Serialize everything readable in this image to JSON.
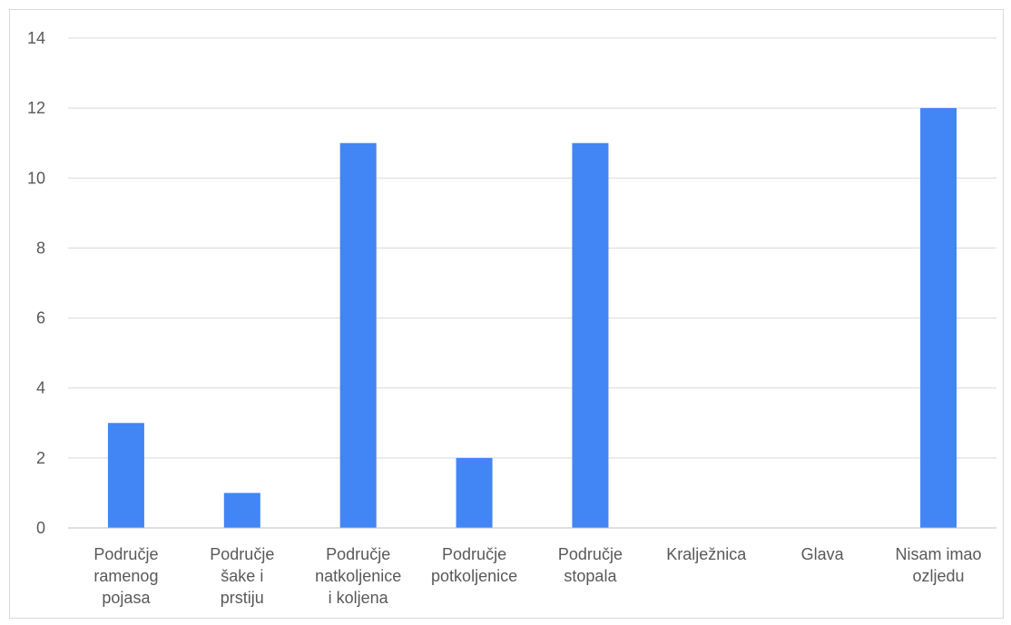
{
  "chart_data": {
    "type": "bar",
    "categories": [
      [
        "Područje",
        "ramenog",
        "pojasa"
      ],
      [
        "Područje",
        "šake i",
        "prstiju"
      ],
      [
        "Područje",
        "natkoljenice",
        "i koljena"
      ],
      [
        "Područje",
        "potkoljenice"
      ],
      [
        "Područje",
        "stopala"
      ],
      [
        "Kralježnica"
      ],
      [
        "Glava"
      ],
      [
        "Nisam imao",
        "ozljedu"
      ]
    ],
    "values": [
      3,
      1,
      11,
      2,
      11,
      0,
      0,
      12
    ],
    "ylim": [
      0,
      14
    ],
    "yticks": [
      "0",
      "2",
      "4",
      "6",
      "8",
      "10",
      "12",
      "14"
    ],
    "grid": true,
    "bar_color": "#4285f4",
    "grid_color": "#d9d9d9",
    "axis_color": "#bfbfbf"
  }
}
